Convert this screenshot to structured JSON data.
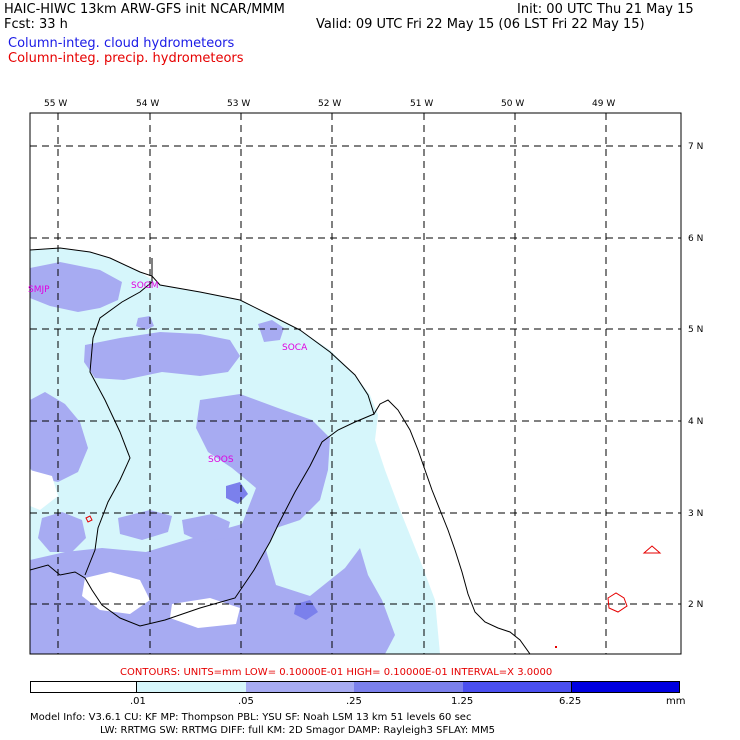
{
  "header": {
    "title": "HAIC-HIWC 13km ARW-GFS init   NCAR/MMM",
    "fcst": "Fcst:   33 h",
    "init": "Init: 00 UTC Thu 21 May 15",
    "valid": "Valid: 09 UTC Fri 22 May 15 (06 LST Fri 22 May 15)",
    "field1": "Column-integ. cloud hydrometeors",
    "field2": "Column-integ. precip. hydrometeors"
  },
  "colors": {
    "field1": "#1a1ae6",
    "field2": "#e60000",
    "shade1": "#d6f6fb",
    "shade2": "#a7abf2",
    "shade3": "#7b80ec",
    "shade4": "#4a4ff0",
    "shade5": "#2020f0",
    "shade6": "#0000e0",
    "station": "#e000e0"
  },
  "map": {
    "lon_labels": [
      "55 W",
      "54 W",
      "53 W",
      "52 W",
      "51 W",
      "50 W",
      "49 W"
    ],
    "lat_labels": [
      "7 N",
      "6 N",
      "5 N",
      "4 N",
      "3 N",
      "2 N"
    ],
    "stations": [
      "SMJP",
      "SOGM",
      "SOCA",
      "SOOS"
    ]
  },
  "contours": "CONTOURS:  UNITS=mm  LOW= 0.10000E-01  HIGH= 0.10000E-01  INTERVAL=X  3.0000",
  "colorbar": {
    "labels": [
      ".01",
      ".05",
      ".25",
      "1.25",
      "6.25"
    ],
    "units": "mm"
  },
  "footer": {
    "line1": "Model Info: V3.6.1    CU: KF     MP: Thompson    PBL: YSU      SF: Noah LSM      13 km    51 levels   60 sec",
    "line2": "LW: RRTMG    SW: RRTMG   DIFF: full    KM: 2D Smagor DAMP: Rayleigh3  SFLAY: MM5"
  }
}
